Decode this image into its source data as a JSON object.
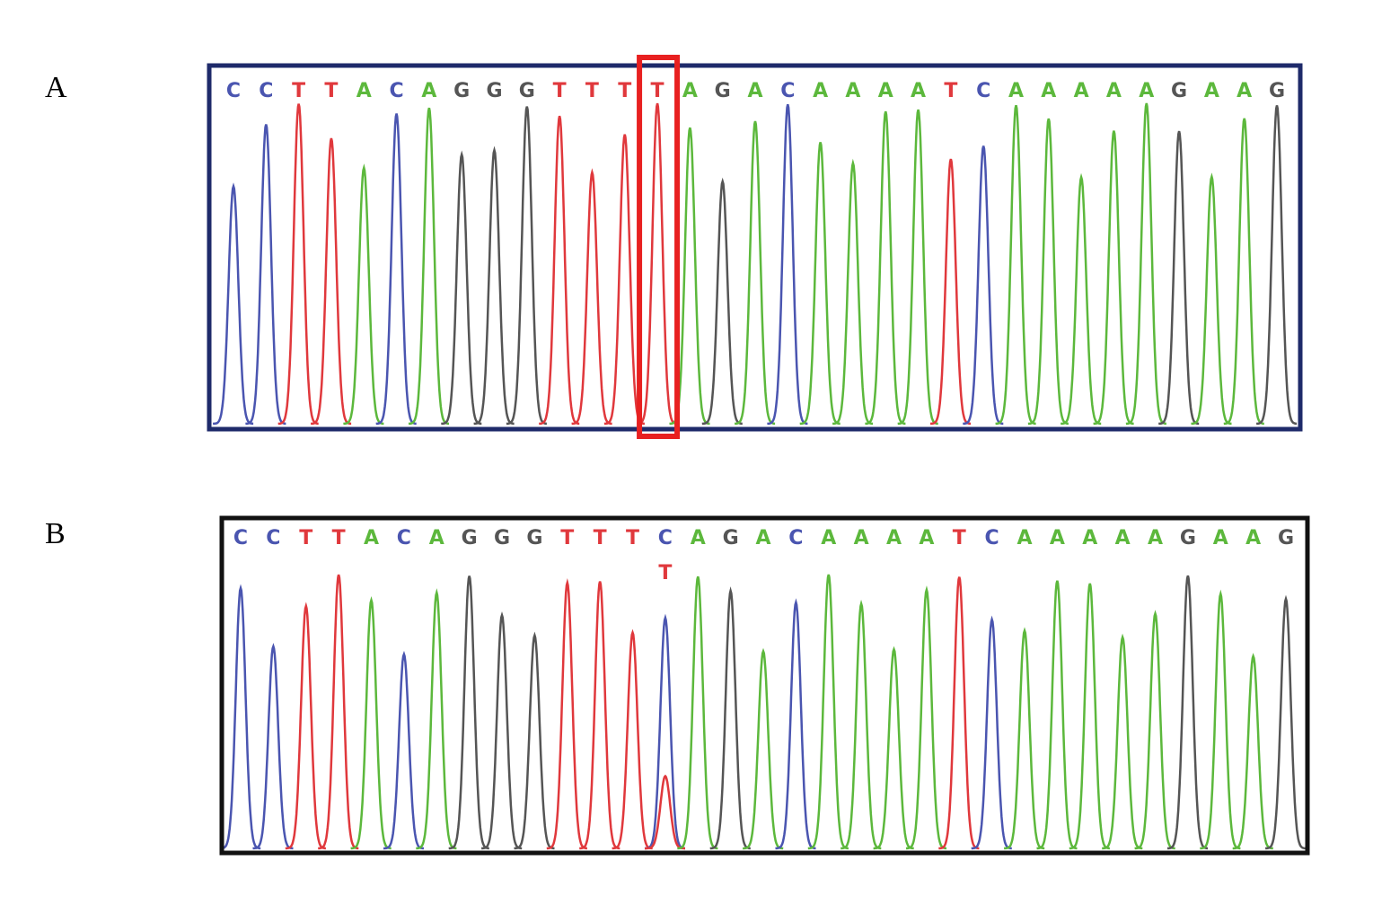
{
  "panels": [
    {
      "label": "A",
      "bases": [
        "C",
        "C",
        "T",
        "T",
        "A",
        "C",
        "A",
        "G",
        "G",
        "G",
        "T",
        "T",
        "T",
        "T",
        "A",
        "G",
        "A",
        "C",
        "A",
        "A",
        "A",
        "A",
        "T",
        "C",
        "A",
        "A",
        "A",
        "A",
        "A",
        "G",
        "A",
        "A",
        "G"
      ]
    },
    {
      "label": "B",
      "bases": [
        "C",
        "C",
        "T",
        "T",
        "A",
        "C",
        "A",
        "G",
        "G",
        "G",
        "T",
        "T",
        "T",
        "C",
        "A",
        "G",
        "A",
        "C",
        "A",
        "A",
        "A",
        "A",
        "T",
        "C",
        "A",
        "A",
        "A",
        "A",
        "A",
        "G",
        "A",
        "A",
        "G"
      ],
      "secondary_bases": [
        null,
        null,
        null,
        null,
        null,
        null,
        null,
        null,
        null,
        null,
        null,
        null,
        null,
        "T",
        null,
        null,
        null,
        null,
        null,
        null,
        null,
        null,
        null,
        null,
        null,
        null,
        null,
        null,
        null,
        null,
        null,
        null,
        null
      ]
    }
  ],
  "base_colors": {
    "A": "#5cb83c",
    "C": "#4a55b0",
    "G": "#555555",
    "T": "#e0383c"
  }
}
